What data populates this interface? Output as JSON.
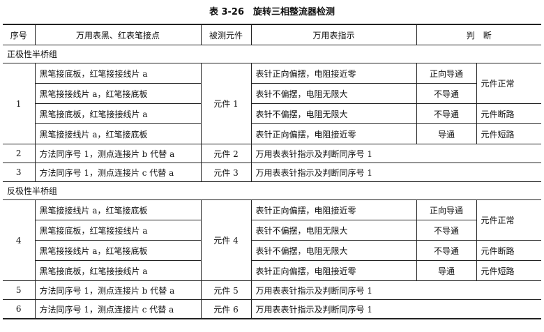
{
  "title": "表 3-26　旋转三相整流器检测",
  "headers": [
    "序号",
    "万用表黑、红表笔接点",
    "被测元件",
    "万用表指示",
    "判　断"
  ],
  "groups": [
    {
      "label": "正极性半桥组",
      "main": {
        "no": "1",
        "component": "元件 1",
        "rows": [
          {
            "probe": "黑笔接底板，红笔接接线片 a",
            "reading": "表针正向偏摆，电阻接近零",
            "judge": "正向导通"
          },
          {
            "probe": "黑笔接接线片 a，红笔接底板",
            "reading": "表针不偏摆，电阻无限大",
            "judge": "不导通"
          },
          {
            "probe": "黑笔接底板，红笔接接线片 a",
            "reading": "表针不偏摆，电阻无限大",
            "judge": "不导通",
            "result": "元件断路"
          },
          {
            "probe": "黑笔接接线片 a，红笔接底板",
            "reading": "表针正向偏摆，电阻接近零",
            "judge": "导通",
            "result": "元件短路"
          }
        ],
        "normal": "元件正常"
      },
      "others": [
        {
          "no": "2",
          "probe": "方法同序号 1，测点连接片 b 代替 a",
          "component": "元件 2",
          "note": "万用表表针指示及判断同序号 1"
        },
        {
          "no": "3",
          "probe": "方法同序号 1，测点连接片 c 代替 a",
          "component": "元件 3",
          "note": "万用表表针指示及判断同序号 1"
        }
      ]
    },
    {
      "label": "反极性半桥组",
      "main": {
        "no": "4",
        "component": "元件 4",
        "rows": [
          {
            "probe": "黑笔接接线片 a，红笔接底板",
            "reading": "表针正向偏摆，电阻接近零",
            "judge": "正向导通"
          },
          {
            "probe": "黑笔接底板，红笔接接线片 a",
            "reading": "表针不偏摆，电阻无限大",
            "judge": "不导通"
          },
          {
            "probe": "黑笔接接线片 a，红笔接底板",
            "reading": "表针不偏摆，电阻无限大",
            "judge": "不导通",
            "result": "元件断路"
          },
          {
            "probe": "黑笔接底板，红笔接接线片 a",
            "reading": "表针正向偏摆，电阻接近零",
            "judge": "导通",
            "result": "元件短路"
          }
        ],
        "normal": "元件正常"
      },
      "others": [
        {
          "no": "5",
          "probe": "方法同序号 1，测点连接片 b 代替 a",
          "component": "元件 5",
          "note": "万用表表针指示及判断同序号 1"
        },
        {
          "no": "6",
          "probe": "方法同序号 1，测点连接片 c 代替 a",
          "component": "元件 6",
          "note": "万用表表针指示及判断同序号 1"
        }
      ]
    }
  ]
}
